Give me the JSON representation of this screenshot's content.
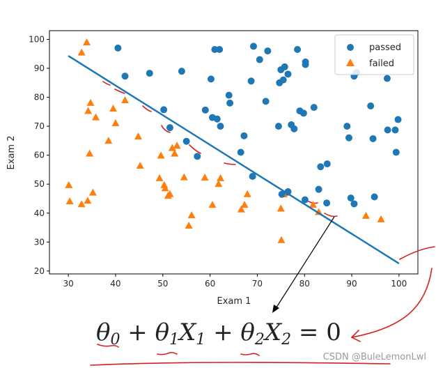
{
  "chart_data": {
    "type": "scatter",
    "xlabel": "Exam 1",
    "ylabel": "Exam 2",
    "xlim": [
      26,
      104
    ],
    "ylim": [
      19,
      103
    ],
    "xticks": [
      30,
      40,
      50,
      60,
      70,
      80,
      90,
      100
    ],
    "yticks": [
      20,
      30,
      40,
      50,
      60,
      70,
      80,
      90,
      100
    ],
    "grid": false,
    "legend_position": "top-right",
    "series": [
      {
        "name": "passed",
        "marker": "circle",
        "color": "#1f77b4",
        "points": [
          [
            40.5,
            97
          ],
          [
            42,
            87.3
          ],
          [
            47.2,
            88.3
          ],
          [
            50.2,
            75.7
          ],
          [
            51.5,
            69.5
          ],
          [
            54,
            89
          ],
          [
            55,
            64.8
          ],
          [
            57.3,
            59.6
          ],
          [
            59,
            75.6
          ],
          [
            60.2,
            86.3
          ],
          [
            60.5,
            73
          ],
          [
            61,
            96.5
          ],
          [
            61.5,
            72.5
          ],
          [
            62,
            96.5
          ],
          [
            62.2,
            70
          ],
          [
            64,
            80.7
          ],
          [
            64.2,
            78
          ],
          [
            66.5,
            61
          ],
          [
            67.2,
            66.7
          ],
          [
            68.7,
            85.6
          ],
          [
            69,
            52.7
          ],
          [
            69.2,
            97.6
          ],
          [
            70.5,
            93
          ],
          [
            71.8,
            78.6
          ],
          [
            72.2,
            96
          ],
          [
            74.5,
            70
          ],
          [
            74.7,
            85
          ],
          [
            75,
            89.5
          ],
          [
            75.5,
            86
          ],
          [
            75.8,
            90.5
          ],
          [
            76.5,
            88
          ],
          [
            76.5,
            47.4
          ],
          [
            77.2,
            70.5
          ],
          [
            77.8,
            69.1
          ],
          [
            78.5,
            96.5
          ],
          [
            79,
            75.3
          ],
          [
            79.8,
            74.5
          ],
          [
            80.2,
            92.2
          ],
          [
            80.2,
            91.3
          ],
          [
            80.1,
            44.6
          ],
          [
            82,
            76.5
          ],
          [
            83,
            48.2
          ],
          [
            83.4,
            56
          ],
          [
            84.8,
            57
          ],
          [
            84.7,
            43.5
          ],
          [
            89,
            70
          ],
          [
            89.4,
            66
          ],
          [
            89.8,
            45.2
          ],
          [
            90.5,
            87.3
          ],
          [
            90.5,
            43.2
          ],
          [
            91,
            88.6
          ],
          [
            94,
            77
          ],
          [
            94.5,
            65.7
          ],
          [
            94.8,
            45.6
          ],
          [
            97.5,
            86.5
          ],
          [
            97.6,
            68.7
          ],
          [
            99.2,
            68.7
          ],
          [
            99.4,
            61
          ],
          [
            99.8,
            72.3
          ],
          [
            75.2,
            46.5
          ]
        ]
      },
      {
        "name": "failed",
        "marker": "triangle",
        "color": "#ff7f0e",
        "points": [
          [
            30.1,
            49.6
          ],
          [
            30.3,
            44
          ],
          [
            32.8,
            95.4
          ],
          [
            32.8,
            43
          ],
          [
            33.9,
            98.9
          ],
          [
            34.1,
            44.2
          ],
          [
            34.2,
            75.2
          ],
          [
            34.5,
            60.5
          ],
          [
            34.7,
            78
          ],
          [
            35.2,
            47
          ],
          [
            35.8,
            73
          ],
          [
            38.5,
            64.9
          ],
          [
            39.5,
            76
          ],
          [
            40,
            71
          ],
          [
            42,
            78.9
          ],
          [
            44.8,
            66.4
          ],
          [
            45.2,
            56.3
          ],
          [
            49.3,
            52
          ],
          [
            49.6,
            59.8
          ],
          [
            50.3,
            49.6
          ],
          [
            50.5,
            48.5
          ],
          [
            51.1,
            45.9
          ],
          [
            51.5,
            46.5
          ],
          [
            52,
            62.4
          ],
          [
            52.5,
            60.5
          ],
          [
            53,
            63.2
          ],
          [
            54.5,
            52.3
          ],
          [
            55.5,
            35.6
          ],
          [
            56.1,
            39.2
          ],
          [
            58.9,
            52.2
          ],
          [
            60.5,
            42.8
          ],
          [
            61.8,
            50
          ],
          [
            62.2,
            52
          ],
          [
            66.6,
            41.2
          ],
          [
            67.3,
            42.8
          ],
          [
            67.9,
            46.5
          ],
          [
            75,
            41.5
          ],
          [
            75.1,
            30.6
          ],
          [
            75.6,
            46.4
          ],
          [
            81.8,
            42.8
          ],
          [
            83,
            40.3
          ],
          [
            93,
            39
          ],
          [
            96.2,
            37.8
          ]
        ]
      }
    ],
    "decision_boundary": {
      "type": "line",
      "color": "#1f77b4",
      "x": [
        30,
        100
      ],
      "y": [
        94.3,
        22.6
      ]
    },
    "equation": "θ0 + θ1X1 + θ2X2 = 0",
    "watermark": "CSDN @BuleLemonLwl"
  }
}
